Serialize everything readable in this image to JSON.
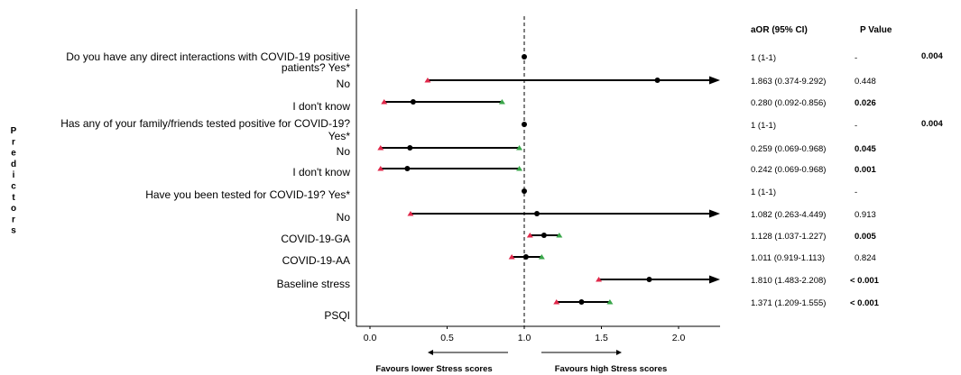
{
  "chart_data": {
    "type": "forest",
    "x_axis": {
      "ticks": [
        "0.0",
        "0.5",
        "1.0",
        "1.5",
        "2.0"
      ],
      "xlim": [
        -0.1,
        2.2
      ],
      "reference_line": 1.0
    },
    "y_axis_title": "Predictors",
    "direction_labels": {
      "left": "Favours lower Stress scores",
      "right": "Favours high Stress scores"
    },
    "table_headers": {
      "aor": "aOR (95% CI)",
      "p": "P Value"
    },
    "rows": [
      {
        "label": "Do you have any direct interactions with COVID-19 positive patients? Yes*",
        "label_lines": [
          "Do you have any direct interactions with COVID-19 positive",
          "patients? Yes*"
        ],
        "or": 1.0,
        "lo": 1.0,
        "hi": 1.0,
        "arrow": false,
        "aor_text": "1 (1-1)",
        "p_text": "-",
        "p_bold": false,
        "overall_p": "0.004"
      },
      {
        "label": "No",
        "label_lines": [
          "No"
        ],
        "or": 1.863,
        "lo": 0.374,
        "hi": 9.292,
        "arrow": true,
        "aor_text": "1.863 (0.374-9.292)",
        "p_text": "0.448",
        "p_bold": false,
        "overall_p": ""
      },
      {
        "label": "I don't know",
        "label_lines": [
          "I don't know"
        ],
        "or": 0.28,
        "lo": 0.092,
        "hi": 0.856,
        "arrow": false,
        "aor_text": "0.280 (0.092-0.856)",
        "p_text": "0.026",
        "p_bold": true,
        "overall_p": ""
      },
      {
        "label": "Has any of your family/friends tested positive for COVID-19? Yes*",
        "label_lines": [
          "Has any of your family/friends tested positive for COVID-19?",
          "Yes*"
        ],
        "or": 1.0,
        "lo": 1.0,
        "hi": 1.0,
        "arrow": false,
        "aor_text": "1 (1-1)",
        "p_text": "-",
        "p_bold": false,
        "overall_p": "0.004"
      },
      {
        "label": "No",
        "label_lines": [
          "No"
        ],
        "or": 0.259,
        "lo": 0.069,
        "hi": 0.968,
        "arrow": false,
        "aor_text": "0.259 (0.069-0.968)",
        "p_text": "0.045",
        "p_bold": true,
        "overall_p": ""
      },
      {
        "label": "I don't know",
        "label_lines": [
          "I don't know"
        ],
        "or": 0.242,
        "lo": 0.069,
        "hi": 0.968,
        "arrow": false,
        "aor_text": "0.242 (0.069-0.968)",
        "p_text": "0.001",
        "p_bold": true,
        "overall_p": ""
      },
      {
        "label": "Have you been tested for COVID-19? Yes*",
        "label_lines": [
          "Have you been tested for COVID-19? Yes*"
        ],
        "or": 1.0,
        "lo": 1.0,
        "hi": 1.0,
        "arrow": false,
        "aor_text": "1 (1-1)",
        "p_text": "-",
        "p_bold": false,
        "overall_p": ""
      },
      {
        "label": "No",
        "label_lines": [
          "No"
        ],
        "or": 1.082,
        "lo": 0.263,
        "hi": 4.449,
        "arrow": true,
        "aor_text": "1.082 (0.263-4.449)",
        "p_text": "0.913",
        "p_bold": false,
        "overall_p": ""
      },
      {
        "label": "COVID-19-GA",
        "label_lines": [
          "COVID-19-GA"
        ],
        "or": 1.128,
        "lo": 1.037,
        "hi": 1.227,
        "arrow": false,
        "aor_text": "1.128 (1.037-1.227)",
        "p_text": "0.005",
        "p_bold": true,
        "overall_p": ""
      },
      {
        "label": "COVID-19-AA",
        "label_lines": [
          "COVID-19-AA"
        ],
        "or": 1.011,
        "lo": 0.919,
        "hi": 1.113,
        "arrow": false,
        "aor_text": "1.011 (0.919-1.113)",
        "p_text": "0.824",
        "p_bold": false,
        "overall_p": ""
      },
      {
        "label": "Baseline stress",
        "label_lines": [
          "Baseline stress"
        ],
        "or": 1.81,
        "lo": 1.483,
        "hi": 2.208,
        "arrow": true,
        "aor_text": "1.810 (1.483-2.208)",
        "p_text": "< 0.001",
        "p_bold": true,
        "overall_p": ""
      },
      {
        "label": "PSQI",
        "label_lines": [
          "PSQI"
        ],
        "or": 1.371,
        "lo": 1.209,
        "hi": 1.555,
        "arrow": false,
        "aor_text": "1.371 (1.209-1.555)",
        "p_text": "< 0.001",
        "p_bold": true,
        "overall_p": ""
      }
    ]
  },
  "colors": {
    "low_marker": "#e0284a",
    "high_marker": "#3aa64a",
    "line": "#000000",
    "axis": "#000000"
  }
}
